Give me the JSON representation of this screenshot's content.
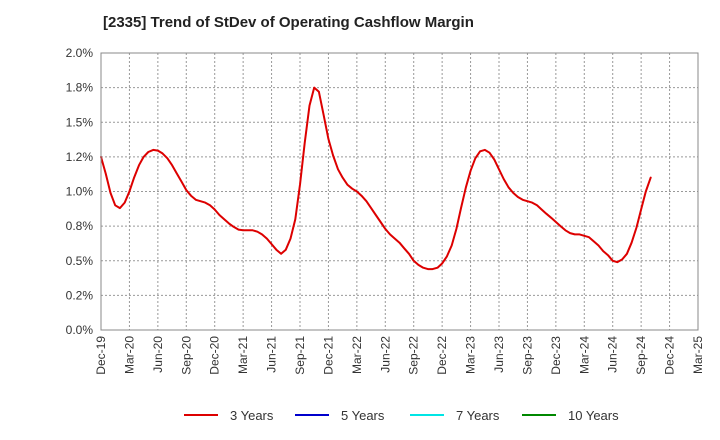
{
  "chart_data": {
    "type": "line",
    "title": "[2335]  Trend of StDev of Operating Cashflow Margin",
    "xlabel": "",
    "ylabel": "",
    "x": [
      "Dec-19",
      "Mar-20",
      "Jun-20",
      "Sep-20",
      "Dec-20",
      "Mar-21",
      "Jun-21",
      "Sep-21",
      "Dec-21",
      "Mar-22",
      "Jun-22",
      "Sep-22",
      "Dec-22",
      "Mar-23",
      "Jun-23",
      "Sep-23",
      "Dec-23",
      "Mar-24",
      "Jun-24",
      "Sep-24",
      "Dec-24",
      "Mar-25"
    ],
    "ylim": [
      0,
      2.0
    ],
    "y_ticks": [
      "0.0%",
      "0.2%",
      "0.5%",
      "0.8%",
      "1.0%",
      "1.2%",
      "1.5%",
      "1.8%",
      "2.0%"
    ],
    "y_tick_values": [
      0,
      0.25,
      0.5,
      0.75,
      1.0,
      1.25,
      1.5,
      1.75,
      2.0
    ],
    "grid": true,
    "legend_position": "bottom",
    "series": [
      {
        "name": "3 Years",
        "color": "#dd0000",
        "points": [
          [
            0,
            1.25
          ],
          [
            0.33,
            1.13
          ],
          [
            0.67,
            0.99
          ],
          [
            1.0,
            0.9
          ],
          [
            1.33,
            0.88
          ],
          [
            1.67,
            0.92
          ],
          [
            2.0,
            1.0
          ],
          [
            2.33,
            1.1
          ],
          [
            2.67,
            1.19
          ],
          [
            3.0,
            1.25
          ],
          [
            3.33,
            1.285
          ],
          [
            3.67,
            1.3
          ],
          [
            4.0,
            1.295
          ],
          [
            4.33,
            1.275
          ],
          [
            4.67,
            1.24
          ],
          [
            5.0,
            1.19
          ],
          [
            5.33,
            1.13
          ],
          [
            5.67,
            1.07
          ],
          [
            6.0,
            1.01
          ],
          [
            6.33,
            0.97
          ],
          [
            6.67,
            0.94
          ],
          [
            7.0,
            0.93
          ],
          [
            7.33,
            0.92
          ],
          [
            7.67,
            0.9
          ],
          [
            8.0,
            0.87
          ],
          [
            8.33,
            0.83
          ],
          [
            8.67,
            0.8
          ],
          [
            9.0,
            0.77
          ],
          [
            9.33,
            0.745
          ],
          [
            9.67,
            0.725
          ],
          [
            10.0,
            0.72
          ],
          [
            10.33,
            0.72
          ],
          [
            10.67,
            0.72
          ],
          [
            11.0,
            0.71
          ],
          [
            11.33,
            0.69
          ],
          [
            11.67,
            0.66
          ],
          [
            12.0,
            0.62
          ],
          [
            12.33,
            0.58
          ],
          [
            12.67,
            0.55
          ],
          [
            13.0,
            0.58
          ],
          [
            13.33,
            0.66
          ],
          [
            13.67,
            0.8
          ],
          [
            14.0,
            1.05
          ],
          [
            14.33,
            1.35
          ],
          [
            14.67,
            1.62
          ],
          [
            15.0,
            1.75
          ],
          [
            15.33,
            1.72
          ],
          [
            15.67,
            1.55
          ],
          [
            16.0,
            1.38
          ],
          [
            16.33,
            1.26
          ],
          [
            16.67,
            1.16
          ],
          [
            17.0,
            1.1
          ],
          [
            17.33,
            1.05
          ],
          [
            17.67,
            1.02
          ],
          [
            18.0,
            1.0
          ],
          [
            18.33,
            0.97
          ],
          [
            18.67,
            0.93
          ],
          [
            19.0,
            0.88
          ],
          [
            19.33,
            0.83
          ],
          [
            19.67,
            0.78
          ],
          [
            20.0,
            0.73
          ],
          [
            20.33,
            0.69
          ],
          [
            20.67,
            0.66
          ],
          [
            21.0,
            0.63
          ],
          [
            21.33,
            0.59
          ],
          [
            21.67,
            0.55
          ],
          [
            22.0,
            0.5
          ],
          [
            22.33,
            0.47
          ],
          [
            22.67,
            0.45
          ],
          [
            23.0,
            0.44
          ],
          [
            23.33,
            0.44
          ],
          [
            23.67,
            0.45
          ],
          [
            24.0,
            0.48
          ],
          [
            24.33,
            0.53
          ],
          [
            24.67,
            0.61
          ],
          [
            25.0,
            0.73
          ],
          [
            25.33,
            0.88
          ],
          [
            25.67,
            1.03
          ],
          [
            26.0,
            1.15
          ],
          [
            26.33,
            1.24
          ],
          [
            26.67,
            1.29
          ],
          [
            27.0,
            1.3
          ],
          [
            27.33,
            1.28
          ],
          [
            27.67,
            1.23
          ],
          [
            28.0,
            1.16
          ],
          [
            28.33,
            1.09
          ],
          [
            28.67,
            1.03
          ],
          [
            29.0,
            0.99
          ],
          [
            29.33,
            0.96
          ],
          [
            29.67,
            0.94
          ],
          [
            30.0,
            0.93
          ],
          [
            30.33,
            0.92
          ],
          [
            30.67,
            0.9
          ],
          [
            31.0,
            0.87
          ],
          [
            31.33,
            0.84
          ],
          [
            31.67,
            0.81
          ],
          [
            32.0,
            0.78
          ],
          [
            32.33,
            0.75
          ],
          [
            32.67,
            0.72
          ],
          [
            33.0,
            0.7
          ],
          [
            33.33,
            0.69
          ],
          [
            33.67,
            0.69
          ],
          [
            34.0,
            0.68
          ],
          [
            34.33,
            0.67
          ],
          [
            34.67,
            0.64
          ],
          [
            35.0,
            0.61
          ],
          [
            35.33,
            0.57
          ],
          [
            35.67,
            0.54
          ],
          [
            36.0,
            0.5
          ],
          [
            36.33,
            0.49
          ],
          [
            36.67,
            0.51
          ],
          [
            37.0,
            0.55
          ],
          [
            37.33,
            0.63
          ],
          [
            37.67,
            0.74
          ],
          [
            38.0,
            0.87
          ],
          [
            38.33,
            1.0
          ],
          [
            38.67,
            1.1
          ]
        ]
      },
      {
        "name": "5 Years",
        "color": "#0000cc",
        "points": []
      },
      {
        "name": "7 Years",
        "color": "#00e5e5",
        "points": []
      },
      {
        "name": "10 Years",
        "color": "#008800",
        "points": []
      }
    ]
  },
  "legend": [
    {
      "label": "3 Years",
      "color": "#dd0000"
    },
    {
      "label": "5 Years",
      "color": "#0000cc"
    },
    {
      "label": "7 Years",
      "color": "#00e5e5"
    },
    {
      "label": "10 Years",
      "color": "#008800"
    }
  ]
}
